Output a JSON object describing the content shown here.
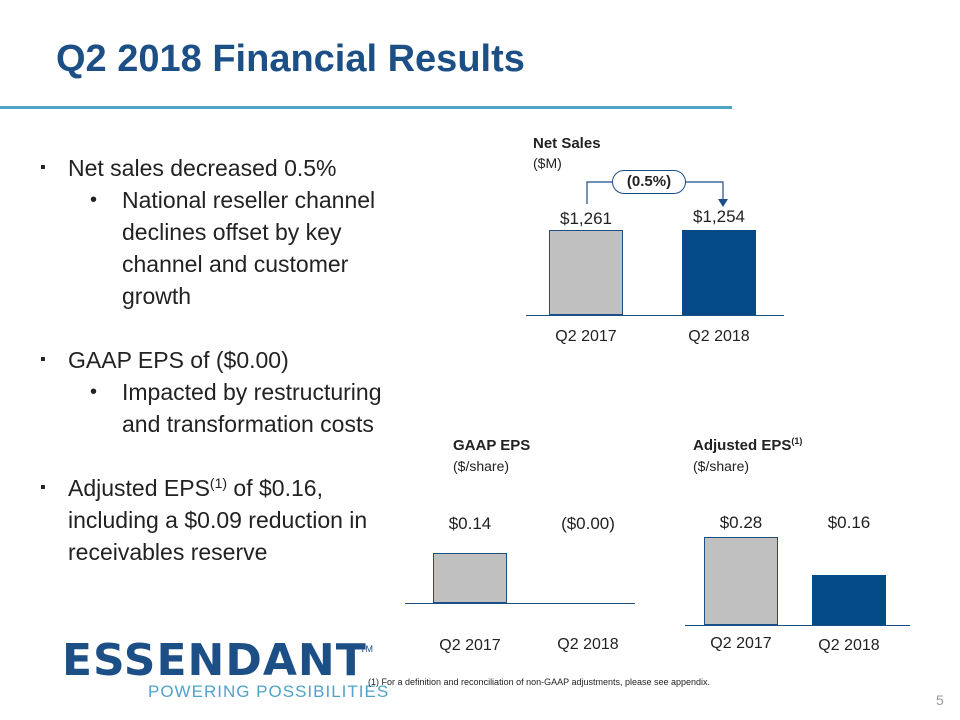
{
  "slide": {
    "title": "Q2 2018 Financial Results",
    "page_number": "5",
    "footnote": "(1)  For a definition and reconciliation of non-GAAP adjustments, please see appendix."
  },
  "bullets": {
    "b1": "Net sales decreased 0.5%",
    "b1_sub": "National reseller channel declines offset by key channel and customer growth",
    "b2": "GAAP EPS of ($0.00)",
    "b2_sub": "Impacted by restructuring and transformation costs",
    "b3_pre": "Adjusted EPS",
    "b3_sup": "(1)",
    "b3_post": " of $0.16, including a $0.09 reduction in receivables reserve"
  },
  "logo": {
    "wordmark": "ESSENDANT",
    "trademark": "TM",
    "tagline": "POWERING POSSIBILITIES"
  },
  "colors": {
    "title": "#1c4f86",
    "rule": "#4fa3c9",
    "bar_prior": "#c0c0c0",
    "bar_current": "#034a86"
  },
  "chart_data": [
    {
      "type": "bar",
      "title": "Net Sales",
      "subtitle": "($M)",
      "categories": [
        "Q2 2017",
        "Q2 2018"
      ],
      "values": [
        1261,
        1254
      ],
      "value_labels": [
        "$1,261",
        "$1,254"
      ],
      "change_label": "(0.5%)",
      "ylim": [
        0,
        1261
      ]
    },
    {
      "type": "bar",
      "title": "GAAP EPS",
      "subtitle": "($/share)",
      "categories": [
        "Q2 2017",
        "Q2 2018"
      ],
      "values": [
        0.14,
        0.0
      ],
      "value_labels": [
        "$0.14",
        "($0.00)"
      ],
      "ylim": [
        0,
        0.28
      ]
    },
    {
      "type": "bar",
      "title": "Adjusted EPS",
      "title_sup": "(1)",
      "subtitle": "($/share)",
      "categories": [
        "Q2 2017",
        "Q2 2018"
      ],
      "values": [
        0.28,
        0.16
      ],
      "value_labels": [
        "$0.28",
        "$0.16"
      ],
      "ylim": [
        0,
        0.28
      ]
    }
  ]
}
